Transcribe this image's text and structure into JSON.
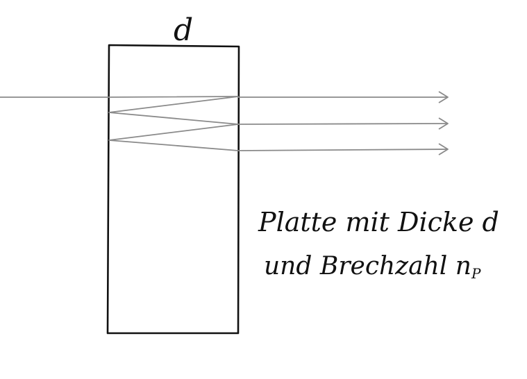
{
  "diagram": {
    "thickness_label": "d",
    "caption_line_1": "Platte mit Dicke d",
    "caption_line_2": "und Brechzahl n",
    "caption_subscript": "P",
    "colors": {
      "plate": "#111111",
      "rays": "#8a8a8a",
      "background": "#ffffff"
    }
  }
}
